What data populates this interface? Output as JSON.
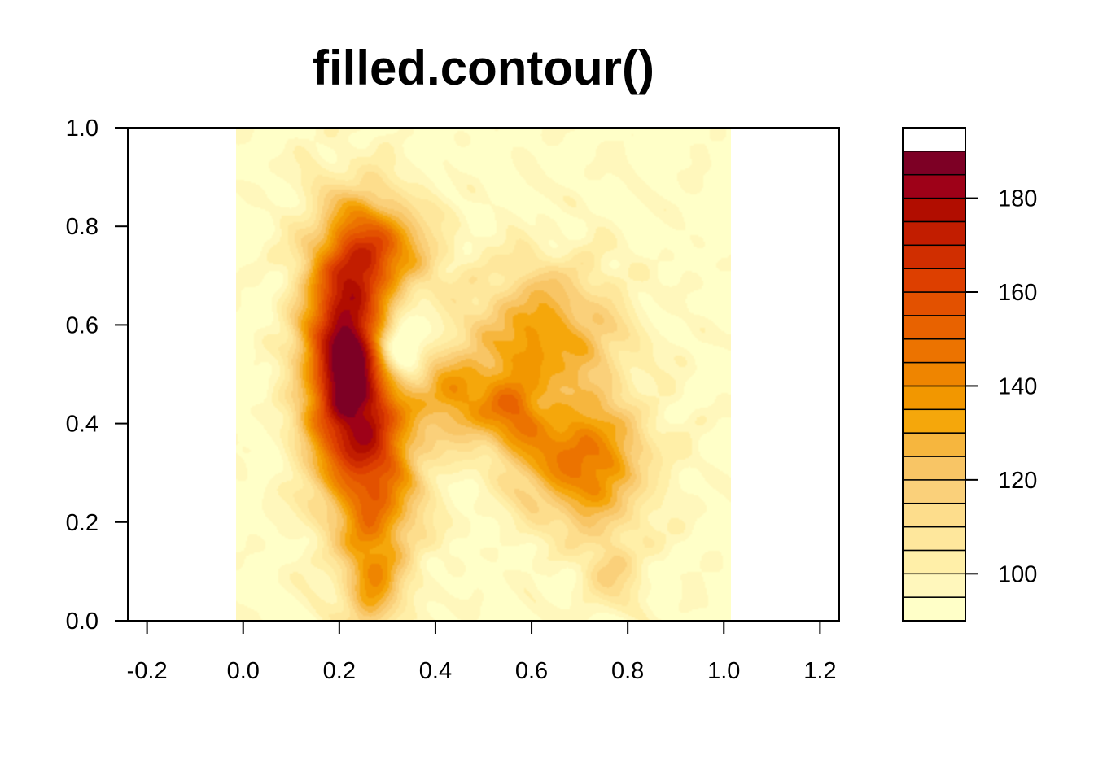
{
  "chart_data": {
    "type": "heatmap",
    "title": "filled.contour()",
    "xlabel": "",
    "ylabel": "",
    "xlim": [
      -0.24,
      1.24
    ],
    "ylim": [
      0.0,
      1.0
    ],
    "x_ticks": [
      "-0.2",
      "0.0",
      "0.2",
      "0.4",
      "0.6",
      "0.8",
      "1.0",
      "1.2"
    ],
    "y_ticks": [
      "0.0",
      "0.2",
      "0.4",
      "0.6",
      "0.8",
      "1.0"
    ],
    "data_extent": {
      "x": [
        0.0,
        1.0
      ],
      "y": [
        0.0,
        1.0
      ]
    },
    "legend": {
      "placement": "right",
      "range": [
        90,
        195
      ],
      "step": 5,
      "tick_values": [
        100,
        120,
        140,
        160,
        180
      ],
      "tick_labels": [
        "100",
        "120",
        "140",
        "160",
        "180"
      ],
      "palette": [
        "#FFFFC8",
        "#FFF7BC",
        "#FFEFA8",
        "#FEE79C",
        "#FDDD8C",
        "#FAD07A",
        "#F8C565",
        "#F6B63E",
        "#F5A70B",
        "#F29700",
        "#EF8500",
        "#EC7300",
        "#E86200",
        "#E35100",
        "#DD3F00",
        "#D02E00",
        "#C21D00",
        "#B10D00",
        "#9E0118",
        "#7D0025"
      ]
    },
    "hotspots": [
      {
        "x": 0.22,
        "y": 0.53,
        "sx": 0.06,
        "sy": 0.18,
        "amp": 98
      },
      {
        "x": 0.3,
        "y": 0.76,
        "sx": 0.07,
        "sy": 0.07,
        "amp": 45
      },
      {
        "x": 0.3,
        "y": 0.3,
        "sx": 0.06,
        "sy": 0.15,
        "amp": 45
      },
      {
        "x": 0.45,
        "y": 0.45,
        "sx": 0.06,
        "sy": 0.06,
        "amp": 38
      },
      {
        "x": 0.56,
        "y": 0.41,
        "sx": 0.04,
        "sy": 0.06,
        "amp": 32
      },
      {
        "x": 0.7,
        "y": 0.32,
        "sx": 0.09,
        "sy": 0.09,
        "amp": 55
      },
      {
        "x": 0.62,
        "y": 0.58,
        "sx": 0.11,
        "sy": 0.1,
        "amp": 42
      },
      {
        "x": 0.27,
        "y": 0.07,
        "sx": 0.04,
        "sy": 0.08,
        "amp": 28
      },
      {
        "x": 0.76,
        "y": 0.1,
        "sx": 0.05,
        "sy": 0.06,
        "amp": 18
      },
      {
        "x": 0.33,
        "y": 0.56,
        "sx": 0.035,
        "sy": 0.045,
        "amp": -38
      }
    ]
  }
}
